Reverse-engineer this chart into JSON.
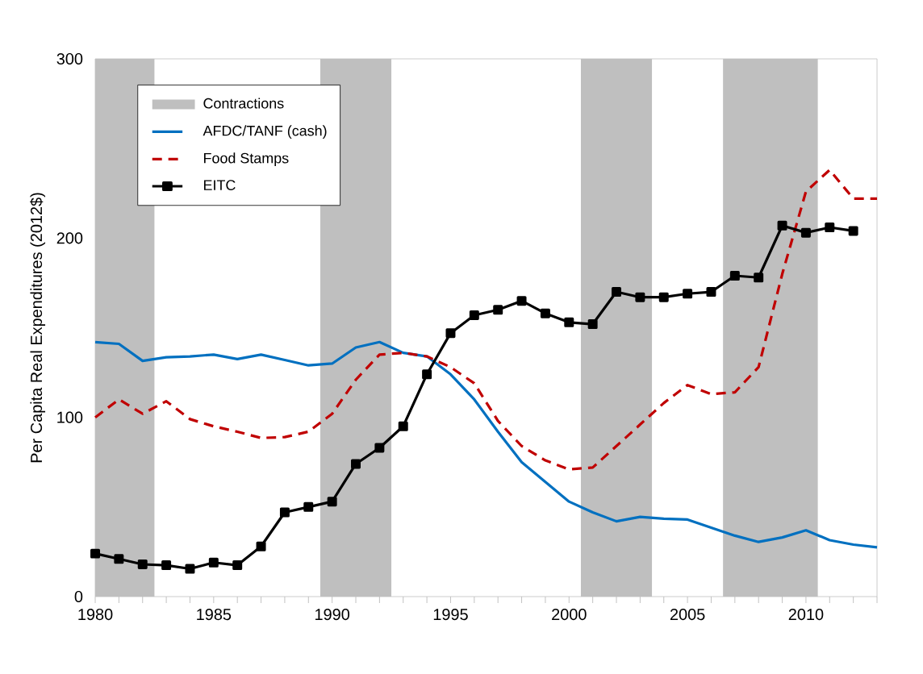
{
  "chart_data": {
    "type": "line",
    "ylabel": "Per Capita Real Expenditures (2012$)",
    "xlim": [
      1980,
      2013
    ],
    "ylim": [
      0,
      300
    ],
    "yticks": [
      0,
      100,
      200,
      300
    ],
    "xticks": [
      1980,
      {
        "value": 1981,
        "label": null
      },
      {
        "value": 1982,
        "label": null
      },
      {
        "value": 1983,
        "label": null
      },
      {
        "value": 1984,
        "label": null
      },
      1985,
      {
        "value": 1986,
        "label": null
      },
      {
        "value": 1987,
        "label": null
      },
      {
        "value": 1988,
        "label": null
      },
      {
        "value": 1989,
        "label": null
      },
      1990,
      {
        "value": 1991,
        "label": null
      },
      {
        "value": 1992,
        "label": null
      },
      {
        "value": 1993,
        "label": null
      },
      {
        "value": 1994,
        "label": null
      },
      1995,
      {
        "value": 1996,
        "label": null
      },
      {
        "value": 1997,
        "label": null
      },
      {
        "value": 1998,
        "label": null
      },
      {
        "value": 1999,
        "label": null
      },
      2000,
      {
        "value": 2001,
        "label": null
      },
      {
        "value": 2002,
        "label": null
      },
      {
        "value": 2003,
        "label": null
      },
      {
        "value": 2004,
        "label": null
      },
      2005,
      {
        "value": 2006,
        "label": null
      },
      {
        "value": 2007,
        "label": null
      },
      {
        "value": 2008,
        "label": null
      },
      {
        "value": 2009,
        "label": null
      },
      2010,
      {
        "value": 2011,
        "label": null
      },
      {
        "value": 2012,
        "label": null
      },
      {
        "value": 2013,
        "label": null
      }
    ],
    "legend": "top left",
    "bands": [
      {
        "axis": "x",
        "from": 1980,
        "to": 1982.5,
        "label": "Contractions",
        "color": "#bfbfbf"
      },
      {
        "axis": "x",
        "from": 1989.5,
        "to": 1992.5,
        "color": "#bfbfbf"
      },
      {
        "axis": "x",
        "from": 2000.5,
        "to": 2003.5,
        "color": "#bfbfbf"
      },
      {
        "axis": "x",
        "from": 2006.5,
        "to": 2010.5,
        "color": "#bfbfbf"
      }
    ],
    "x": [
      1980,
      1981,
      1982,
      1983,
      1984,
      1985,
      1986,
      1987,
      1988,
      1989,
      1990,
      1991,
      1992,
      1993,
      1994,
      1995,
      1996,
      1997,
      1998,
      1999,
      2000,
      2001,
      2002,
      2003,
      2004,
      2005,
      2006,
      2007,
      2008,
      2009,
      2010,
      2011,
      2012,
      2013
    ],
    "series": [
      {
        "name": "AFDC/TANF (cash)",
        "color": "#0070c0",
        "line_style": "solid",
        "marker": "none",
        "values": [
          142,
          141,
          131.5,
          133.5,
          134,
          135,
          132.5,
          135,
          132,
          129,
          130,
          139,
          142,
          136,
          134,
          124,
          110,
          92,
          75,
          64,
          53,
          47,
          42,
          44.5,
          43.5,
          43,
          38.5,
          34,
          30.5,
          33,
          37,
          31.5,
          29,
          27.5
        ]
      },
      {
        "name": "Food Stamps",
        "color": "#c00000",
        "line_style": "dashed",
        "marker": "none",
        "values": [
          100,
          110,
          102,
          109,
          99,
          95,
          92,
          88.5,
          89,
          92,
          102,
          121,
          135,
          136,
          134,
          128,
          119,
          98,
          84,
          76,
          71,
          72,
          84,
          96,
          108,
          118,
          113,
          114,
          128,
          180,
          226,
          238,
          222,
          222
        ]
      },
      {
        "name": "EITC",
        "color": "#000000",
        "line_style": "solid",
        "marker": "square",
        "values": [
          24,
          21,
          18,
          17.5,
          15.5,
          19,
          17.5,
          28,
          47,
          50,
          53,
          74,
          83,
          95,
          124,
          147,
          157,
          160,
          165,
          158,
          153,
          152,
          170,
          167,
          167,
          169,
          170,
          179,
          178,
          207,
          203,
          206,
          204,
          null
        ]
      }
    ]
  }
}
